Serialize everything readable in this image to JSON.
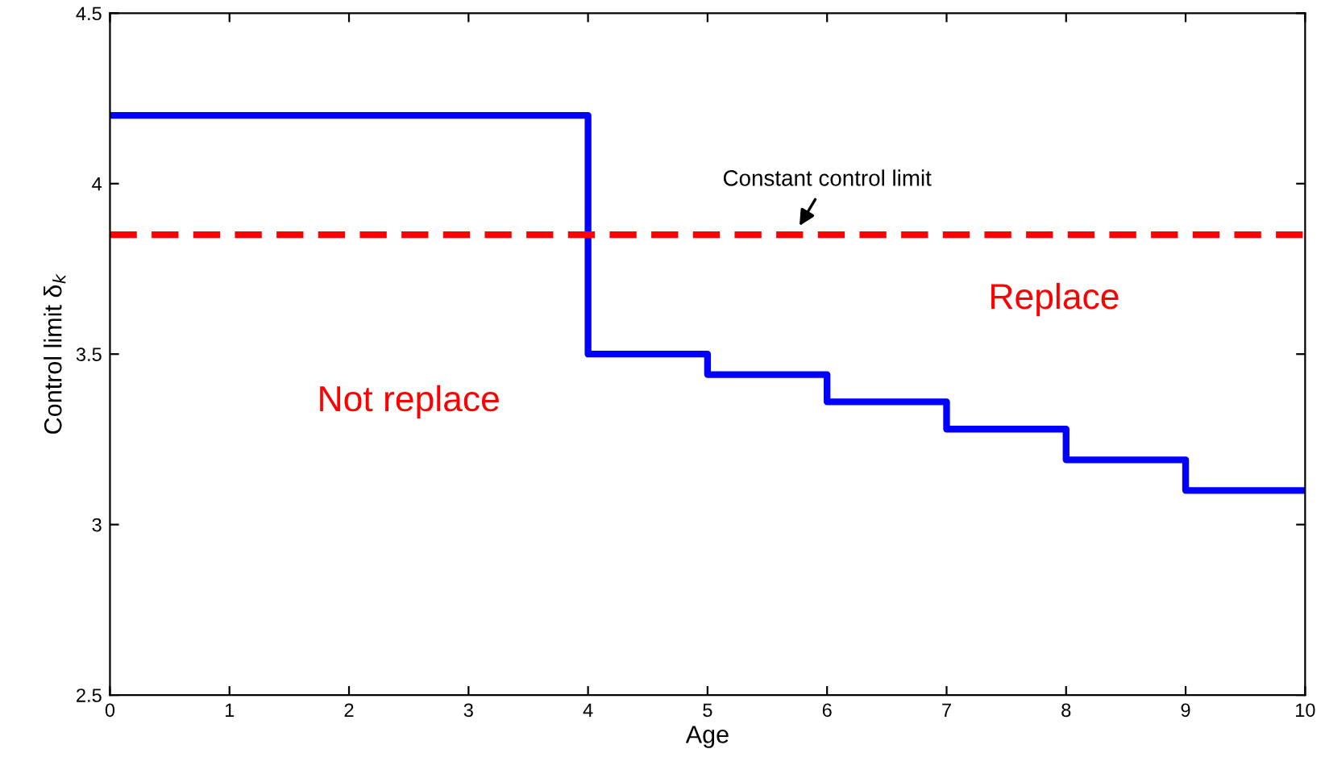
{
  "chart_data": {
    "type": "step",
    "xlabel": "Age",
    "ylabel": "Control limit δ$_{k}$",
    "x": [
      0,
      4,
      5,
      6,
      7,
      8,
      9,
      10
    ],
    "series": [
      {
        "color": "#0000ff",
        "values": [
          4.2,
          3.5,
          3.44,
          3.36,
          3.28,
          3.19,
          3.1,
          3.1
        ]
      }
    ],
    "xlim": [
      0,
      10
    ],
    "xticks": [
      0,
      1,
      2,
      3,
      4,
      5,
      6,
      7,
      8,
      9,
      10
    ],
    "ylim": [
      2.5,
      4.5
    ],
    "yticks": [
      2.5,
      3,
      3.5,
      4,
      4.5
    ],
    "ref_lines": [
      {
        "axis": "y",
        "value": 3.85,
        "color": "#ff0000",
        "line_style": "dashed"
      }
    ],
    "annotations": [
      {
        "text": "Constant control limit",
        "x": 5.75,
        "y": 3.85
      },
      "Not replace",
      "Replace"
    ],
    "grid": false
  }
}
